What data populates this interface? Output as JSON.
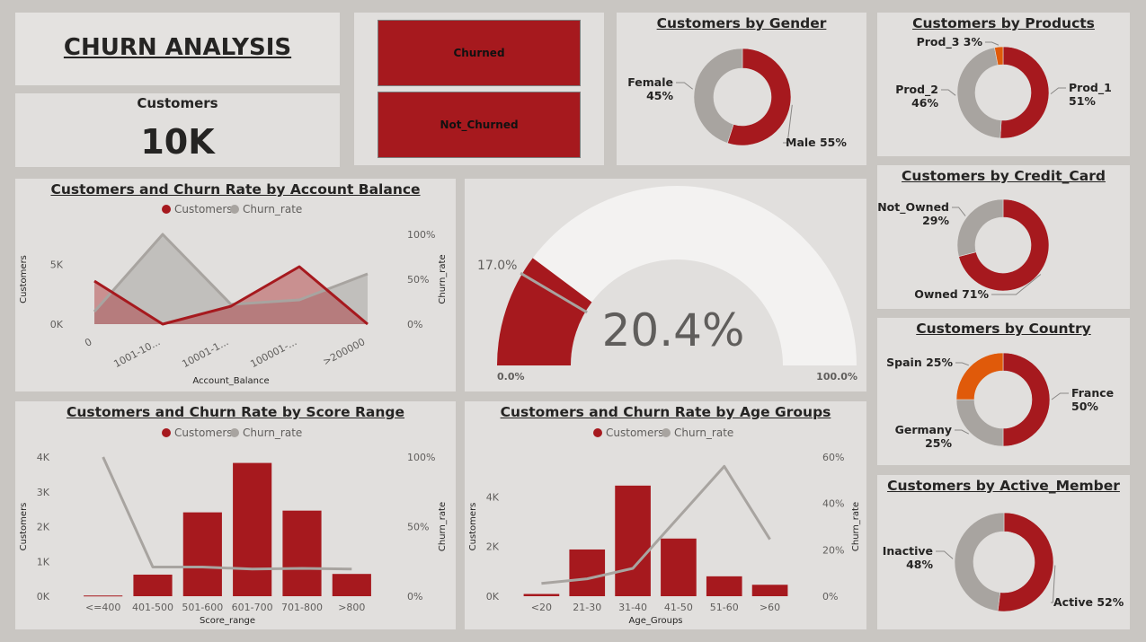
{
  "title": "CHURN ANALYSIS",
  "colors": {
    "accent": "#a6191e",
    "secondary": "#a8a4a0",
    "orange": "#e05a0a",
    "bg": "#c9c6c2",
    "panel": "#e1dfdd"
  },
  "kpi": {
    "label": "Customers",
    "value": "10K"
  },
  "slicer": {
    "items": [
      "Churned",
      "Not_Churned"
    ]
  },
  "gauge": {
    "value_label": "20.4%",
    "value": 20.4,
    "min_label": "0.0%",
    "max_label": "100.0%",
    "target_label": "17.0%",
    "target": 17.0
  },
  "chart_data": [
    {
      "id": "gender",
      "type": "pie",
      "title": "Customers by Gender",
      "slices": [
        {
          "name": "Male",
          "value": 55,
          "label": "Male 55%"
        },
        {
          "name": "Female",
          "value": 45,
          "label": "Female\n45%"
        }
      ]
    },
    {
      "id": "products",
      "type": "pie",
      "title": "Customers by Products",
      "slices": [
        {
          "name": "Prod_1",
          "value": 51,
          "label": "Prod_1\n51%"
        },
        {
          "name": "Prod_2",
          "value": 46,
          "label": "Prod_2\n46%"
        },
        {
          "name": "Prod_3",
          "value": 3,
          "label": "Prod_3 3%"
        }
      ]
    },
    {
      "id": "credit",
      "type": "pie",
      "title": "Customers by Credit_Card",
      "slices": [
        {
          "name": "Owned",
          "value": 71,
          "label": "Owned 71%"
        },
        {
          "name": "Not_Owned",
          "value": 29,
          "label": "Not_Owned\n29%"
        }
      ]
    },
    {
      "id": "country",
      "type": "pie",
      "title": "Customers by Country",
      "slices": [
        {
          "name": "France",
          "value": 50,
          "label": "France\n50%"
        },
        {
          "name": "Germany",
          "value": 25,
          "label": "Germany\n25%"
        },
        {
          "name": "Spain",
          "value": 25,
          "label": "Spain 25%"
        }
      ]
    },
    {
      "id": "active",
      "type": "pie",
      "title": "Customers by Active_Member",
      "slices": [
        {
          "name": "Active",
          "value": 52,
          "label": "Active 52%"
        },
        {
          "name": "Inactive",
          "value": 48,
          "label": "Inactive\n48%"
        }
      ]
    },
    {
      "id": "balance",
      "type": "area",
      "title": "Customers and Churn Rate by Account Balance",
      "legend": [
        "Customers",
        "Churn_rate"
      ],
      "categories": [
        "0",
        "1001-10...",
        "10001-1...",
        "100001-...",
        ">200000"
      ],
      "xlabel": "Account_Balance",
      "ylabel": "Customers",
      "y2label": "Churn_rate",
      "y_ticks": [
        "0K",
        "5K"
      ],
      "y_max": 7500,
      "y2_ticks": [
        "0%",
        "50%",
        "100%"
      ],
      "y2_max": 1.0,
      "series": [
        {
          "name": "Customers",
          "values": [
            3600,
            0,
            1500,
            4800,
            0
          ]
        },
        {
          "name": "Churn_rate",
          "values": [
            0.14,
            1.0,
            0.22,
            0.27,
            0.56
          ]
        }
      ]
    },
    {
      "id": "score",
      "type": "bar",
      "title": "Customers and Churn Rate by Score Range",
      "legend": [
        "Customers",
        "Churn_rate"
      ],
      "categories": [
        "<=400",
        "401-500",
        "501-600",
        "601-700",
        "701-800",
        ">800"
      ],
      "xlabel": "Score_range",
      "ylabel": "Customers",
      "y2label": "Churn_rate",
      "y_ticks": [
        "0K",
        "1K",
        "2K",
        "3K",
        "4K"
      ],
      "y_max": 4000,
      "y2_ticks": [
        "0%",
        "50%",
        "100%"
      ],
      "y2_max": 1.0,
      "series": [
        {
          "name": "Customers",
          "values": [
            20,
            620,
            2410,
            3830,
            2460,
            640
          ]
        },
        {
          "name": "Churn_rate",
          "values": [
            1.0,
            0.21,
            0.21,
            0.195,
            0.2,
            0.195
          ]
        }
      ]
    },
    {
      "id": "age",
      "type": "bar",
      "title": "Customers and Churn Rate by Age Groups",
      "legend": [
        "Customers",
        "Churn_rate"
      ],
      "categories": [
        "<20",
        "21-30",
        "31-40",
        "41-50",
        "51-60",
        ">60"
      ],
      "xlabel": "Age_Groups",
      "ylabel": "Customers",
      "y2label": "Churn_rate",
      "y_ticks": [
        "0K",
        "2K",
        "4K"
      ],
      "y_max": 5600,
      "y2_ticks": [
        "0%",
        "20%",
        "40%",
        "60%"
      ],
      "y2_max": 0.6,
      "series": [
        {
          "name": "Customers",
          "values": [
            90,
            1880,
            4450,
            2320,
            800,
            460
          ]
        },
        {
          "name": "Churn_rate",
          "values": [
            0.055,
            0.075,
            0.12,
            0.34,
            0.56,
            0.245
          ]
        }
      ]
    }
  ]
}
